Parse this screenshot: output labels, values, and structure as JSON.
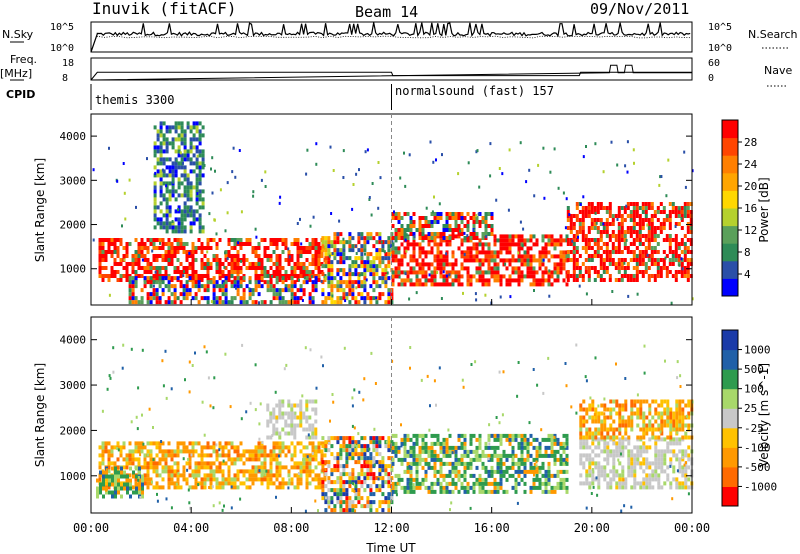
{
  "header": {
    "station": "Inuvik (fitACF)",
    "beam": "Beam 14",
    "date": "09/Nov/2011"
  },
  "labels": {
    "nsky": "N.Sky",
    "freq": "Freq.",
    "freq_unit": "[MHz]",
    "cpid": "CPID",
    "nsearch": "N.Search",
    "nave": "Nave",
    "nsky_ticks": [
      "10^5",
      "10^0"
    ],
    "freq_ticks": [
      "18",
      "8"
    ],
    "nsearch_ticks": [
      "10^5",
      "10^0"
    ],
    "nave_ticks": [
      "60",
      "0"
    ]
  },
  "cpid_segments": [
    {
      "label": "themis 3300",
      "start_hour": 0
    },
    {
      "label": "normalsound (fast) 157",
      "start_hour": 12
    }
  ],
  "colors": {
    "power": [
      "#0000ff",
      "#2a4fa8",
      "#2e8b57",
      "#5aa05a",
      "#b5d12e",
      "#ffd700",
      "#ffa500",
      "#ff7f00",
      "#ff4500",
      "#ff0000"
    ],
    "velocity": [
      "#ff0000",
      "#ff6a00",
      "#ff9900",
      "#ffc200",
      "#c8c8c8",
      "#a8d86a",
      "#2e9b4e",
      "#2060a8",
      "#1a3aa8"
    ]
  },
  "chart_data": [
    {
      "type": "heatmap",
      "name": "power",
      "xlabel": "",
      "ylabel": "Slant Range [km]",
      "x_range_hours": [
        0,
        24
      ],
      "y_range_km": [
        180,
        4500
      ],
      "x_ticks": [
        "00:00",
        "04:00",
        "08:00",
        "12:00",
        "16:00",
        "20:00",
        "00:00"
      ],
      "y_ticks": [
        1000,
        2000,
        3000,
        4000
      ],
      "colorbar_label": "Power [dB]",
      "colorbar_ticks": [
        "28",
        "24",
        "20",
        "16",
        "12",
        "8",
        "4"
      ],
      "colorbar_range": [
        0,
        30
      ],
      "regions": [
        {
          "t": [
            0.3,
            9.3
          ],
          "r": [
            700,
            1650
          ],
          "level": "high"
        },
        {
          "t": [
            1.5,
            9.0
          ],
          "r": [
            200,
            800
          ],
          "level": "mid"
        },
        {
          "t": [
            9.2,
            12.0
          ],
          "r": [
            200,
            1800
          ],
          "level": "mixed"
        },
        {
          "t": [
            12.0,
            19.0
          ],
          "r": [
            600,
            1700
          ],
          "level": "high"
        },
        {
          "t": [
            19.0,
            24.0
          ],
          "r": [
            700,
            2500
          ],
          "level": "high"
        },
        {
          "t": [
            2.5,
            4.5
          ],
          "r": [
            1800,
            4300
          ],
          "level": "low"
        },
        {
          "t": [
            12.0,
            16.0
          ],
          "r": [
            1650,
            2200
          ],
          "level": "mid"
        }
      ]
    },
    {
      "type": "heatmap",
      "name": "velocity",
      "xlabel": "Time UT",
      "ylabel": "Slant Range [km]",
      "x_range_hours": [
        0,
        24
      ],
      "y_range_km": [
        180,
        4500
      ],
      "x_ticks": [
        "00:00",
        "04:00",
        "08:00",
        "12:00",
        "16:00",
        "20:00",
        "00:00"
      ],
      "y_ticks": [
        1000,
        2000,
        3000,
        4000
      ],
      "colorbar_label": "Velocity [m s^-1]",
      "colorbar_ticks": [
        "1000",
        "500",
        "100",
        "25",
        "-25",
        "-100",
        "-500",
        "-1000"
      ],
      "colorbar_range": [
        -1200,
        1200
      ],
      "regions": [
        {
          "t": [
            0.3,
            9.3
          ],
          "r": [
            700,
            1700
          ],
          "level": "neg"
        },
        {
          "t": [
            0.2,
            2.0
          ],
          "r": [
            500,
            1200
          ],
          "level": "pos"
        },
        {
          "t": [
            9.2,
            12.0
          ],
          "r": [
            200,
            1800
          ],
          "level": "mixed"
        },
        {
          "t": [
            12.0,
            19.0
          ],
          "r": [
            600,
            1900
          ],
          "level": "pos"
        },
        {
          "t": [
            19.5,
            24.0
          ],
          "r": [
            700,
            1800
          ],
          "level": "grey"
        },
        {
          "t": [
            19.5,
            24.0
          ],
          "r": [
            1800,
            2600
          ],
          "level": "neg"
        },
        {
          "t": [
            7.0,
            9.0
          ],
          "r": [
            1800,
            2600
          ],
          "level": "grey"
        }
      ]
    }
  ],
  "nsky_series": [
    {
      "hour": 0.0,
      "value": 0
    },
    {
      "hour": 0.25,
      "value": 3
    },
    {
      "hour": 4,
      "value": 3.2
    },
    {
      "hour": 8,
      "value": 3
    },
    {
      "hour": 12,
      "value": 2.8
    },
    {
      "hour": 16,
      "value": 2.7
    },
    {
      "hour": 20,
      "value": 2.6
    },
    {
      "hour": 24,
      "value": 3
    }
  ],
  "freq_series": [
    {
      "hour": 0.0,
      "value": 8
    },
    {
      "hour": 0.25,
      "value": 11.5
    },
    {
      "hour": 12,
      "value": 11.5
    },
    {
      "hour": 12.05,
      "value": 10
    },
    {
      "hour": 19.5,
      "value": 10
    },
    {
      "hour": 19.55,
      "value": 11.5
    },
    {
      "hour": 24,
      "value": 11.5
    }
  ],
  "nave_series": [
    {
      "hour": 0.0,
      "value": 0
    },
    {
      "hour": 20.7,
      "value": 20
    },
    {
      "hour": 20.75,
      "value": 40
    },
    {
      "hour": 21.0,
      "value": 40
    },
    {
      "hour": 21.05,
      "value": 20
    },
    {
      "hour": 21.3,
      "value": 20
    },
    {
      "hour": 21.35,
      "value": 40
    },
    {
      "hour": 21.6,
      "value": 40
    },
    {
      "hour": 21.65,
      "value": 20
    },
    {
      "hour": 24,
      "value": 20
    }
  ]
}
